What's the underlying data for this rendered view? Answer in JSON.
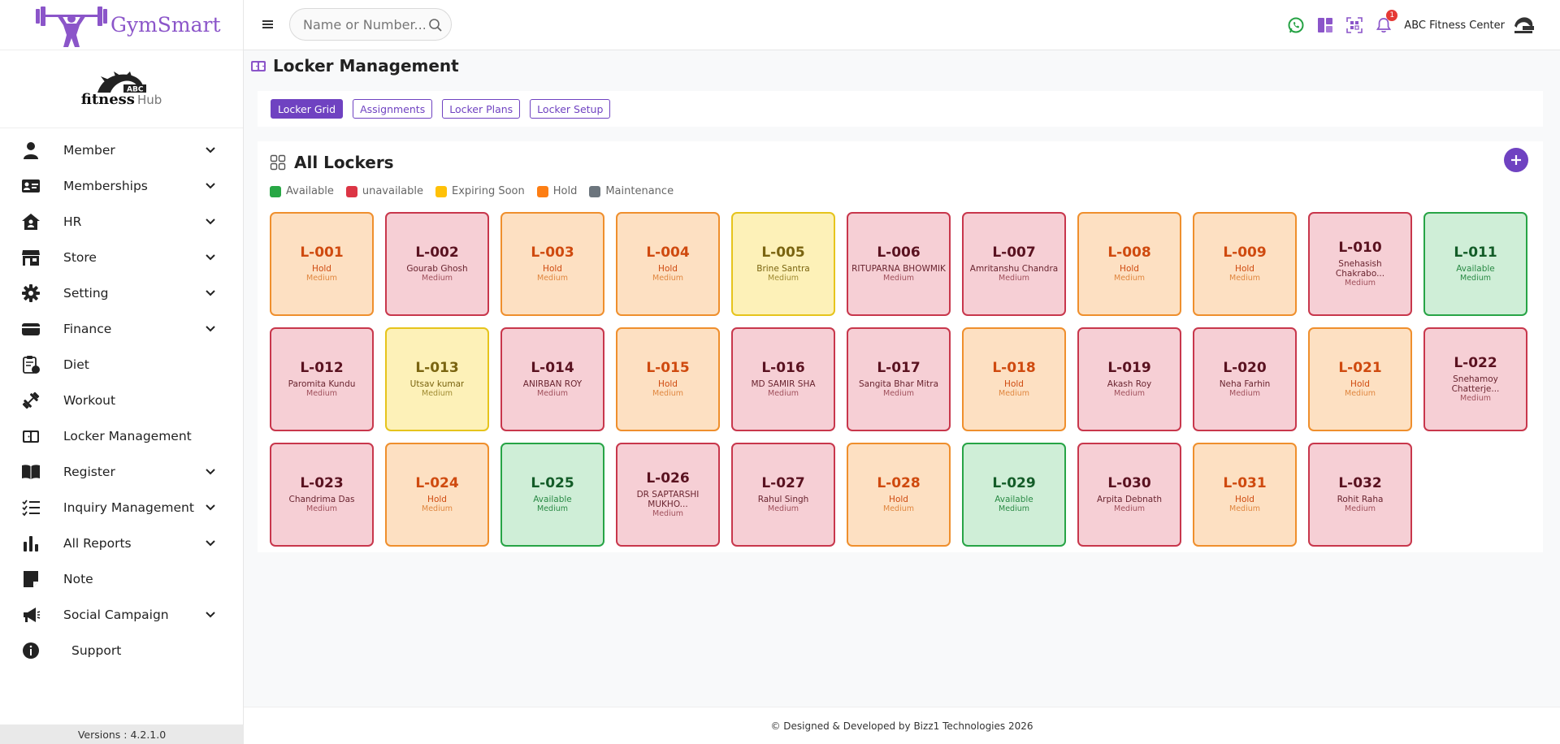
{
  "brand": {
    "name": "GymSmart"
  },
  "club_logo": {
    "line1": "fitness",
    "line2": "Hub",
    "badge": "ABC"
  },
  "sidebar": {
    "items": [
      {
        "label": "Member",
        "icon": "user-icon",
        "expandable": true
      },
      {
        "label": "Memberships",
        "icon": "id-card-icon",
        "expandable": true
      },
      {
        "label": "HR",
        "icon": "home-user-icon",
        "expandable": true
      },
      {
        "label": "Store",
        "icon": "store-icon",
        "expandable": true
      },
      {
        "label": "Setting",
        "icon": "gear-icon",
        "expandable": true
      },
      {
        "label": "Finance",
        "icon": "wallet-icon",
        "expandable": true
      },
      {
        "label": "Diet",
        "icon": "clipboard-icon",
        "expandable": false
      },
      {
        "label": "Workout",
        "icon": "dumbbell-icon",
        "expandable": false
      },
      {
        "label": "Locker Management",
        "icon": "locker-icon",
        "expandable": false
      },
      {
        "label": "Register",
        "icon": "book-icon",
        "expandable": true
      },
      {
        "label": "Inquiry Management",
        "icon": "list-check-icon",
        "expandable": true
      },
      {
        "label": "All Reports",
        "icon": "bar-chart-icon",
        "expandable": true
      },
      {
        "label": "Note",
        "icon": "sticky-note-icon",
        "expandable": false
      },
      {
        "label": "Social Campaign",
        "icon": "megaphone-icon",
        "expandable": true
      },
      {
        "label": "Support",
        "icon": "info-icon",
        "expandable": false
      }
    ],
    "version": "Versions : 4.2.1.0"
  },
  "topbar": {
    "search_placeholder": "Name or Number...",
    "notification_count": "1",
    "center_name": "ABC Fitness Center"
  },
  "page": {
    "title": "Locker Management"
  },
  "tabs": [
    {
      "label": "Locker Grid",
      "active": true
    },
    {
      "label": "Assignments",
      "active": false
    },
    {
      "label": "Locker Plans",
      "active": false
    },
    {
      "label": "Locker Setup",
      "active": false
    }
  ],
  "grid": {
    "title": "All Lockers",
    "legend": [
      {
        "label": "Available",
        "color": "#28a745"
      },
      {
        "label": "unavailable",
        "color": "#dc3545"
      },
      {
        "label": "Expiring Soon",
        "color": "#ffc107"
      },
      {
        "label": "Hold",
        "color": "#fd7e14"
      },
      {
        "label": "Maintenance",
        "color": "#6c757d"
      }
    ],
    "lockers": [
      {
        "code": "L-001",
        "text": "Hold",
        "size": "Medium",
        "state": "hold"
      },
      {
        "code": "L-002",
        "text": "Gourab Ghosh",
        "size": "Medium",
        "state": "unavailable"
      },
      {
        "code": "L-003",
        "text": "Hold",
        "size": "Medium",
        "state": "hold"
      },
      {
        "code": "L-004",
        "text": "Hold",
        "size": "Medium",
        "state": "hold"
      },
      {
        "code": "L-005",
        "text": "Brine Santra",
        "size": "Medium",
        "state": "expiring"
      },
      {
        "code": "L-006",
        "text": "RITUPARNA BHOWMIK",
        "size": "Medium",
        "state": "unavailable"
      },
      {
        "code": "L-007",
        "text": "Amritanshu Chandra",
        "size": "Medium",
        "state": "unavailable"
      },
      {
        "code": "L-008",
        "text": "Hold",
        "size": "Medium",
        "state": "hold"
      },
      {
        "code": "L-009",
        "text": "Hold",
        "size": "Medium",
        "state": "hold"
      },
      {
        "code": "L-010",
        "text": "Snehasish Chakrabo...",
        "size": "Medium",
        "state": "unavailable"
      },
      {
        "code": "L-011",
        "text": "Available",
        "size": "Medium",
        "state": "available"
      },
      {
        "code": "L-012",
        "text": "Paromita Kundu",
        "size": "Medium",
        "state": "unavailable"
      },
      {
        "code": "L-013",
        "text": "Utsav kumar",
        "size": "Medium",
        "state": "expiring"
      },
      {
        "code": "L-014",
        "text": "ANIRBAN ROY",
        "size": "Medium",
        "state": "unavailable"
      },
      {
        "code": "L-015",
        "text": "Hold",
        "size": "Medium",
        "state": "hold"
      },
      {
        "code": "L-016",
        "text": "MD SAMIR SHA",
        "size": "Medium",
        "state": "unavailable"
      },
      {
        "code": "L-017",
        "text": "Sangita Bhar Mitra",
        "size": "Medium",
        "state": "unavailable"
      },
      {
        "code": "L-018",
        "text": "Hold",
        "size": "Medium",
        "state": "hold"
      },
      {
        "code": "L-019",
        "text": "Akash Roy",
        "size": "Medium",
        "state": "unavailable"
      },
      {
        "code": "L-020",
        "text": "Neha Farhin",
        "size": "Medium",
        "state": "unavailable"
      },
      {
        "code": "L-021",
        "text": "Hold",
        "size": "Medium",
        "state": "hold"
      },
      {
        "code": "L-022",
        "text": "Snehamoy Chatterje...",
        "size": "Medium",
        "state": "unavailable"
      },
      {
        "code": "L-023",
        "text": "Chandrima Das",
        "size": "Medium",
        "state": "unavailable"
      },
      {
        "code": "L-024",
        "text": "Hold",
        "size": "Medium",
        "state": "hold"
      },
      {
        "code": "L-025",
        "text": "Available",
        "size": "Medium",
        "state": "available"
      },
      {
        "code": "L-026",
        "text": "DR SAPTARSHI MUKHO...",
        "size": "Medium",
        "state": "unavailable"
      },
      {
        "code": "L-027",
        "text": "Rahul Singh",
        "size": "Medium",
        "state": "unavailable"
      },
      {
        "code": "L-028",
        "text": "Hold",
        "size": "Medium",
        "state": "hold"
      },
      {
        "code": "L-029",
        "text": "Available",
        "size": "Medium",
        "state": "available"
      },
      {
        "code": "L-030",
        "text": "Arpita Debnath",
        "size": "Medium",
        "state": "unavailable"
      },
      {
        "code": "L-031",
        "text": "Hold",
        "size": "Medium",
        "state": "hold"
      },
      {
        "code": "L-032",
        "text": "Rohit Raha",
        "size": "Medium",
        "state": "unavailable"
      }
    ]
  },
  "footer": {
    "text": "© Designed & Developed by Bizz1 Technologies 2026"
  }
}
